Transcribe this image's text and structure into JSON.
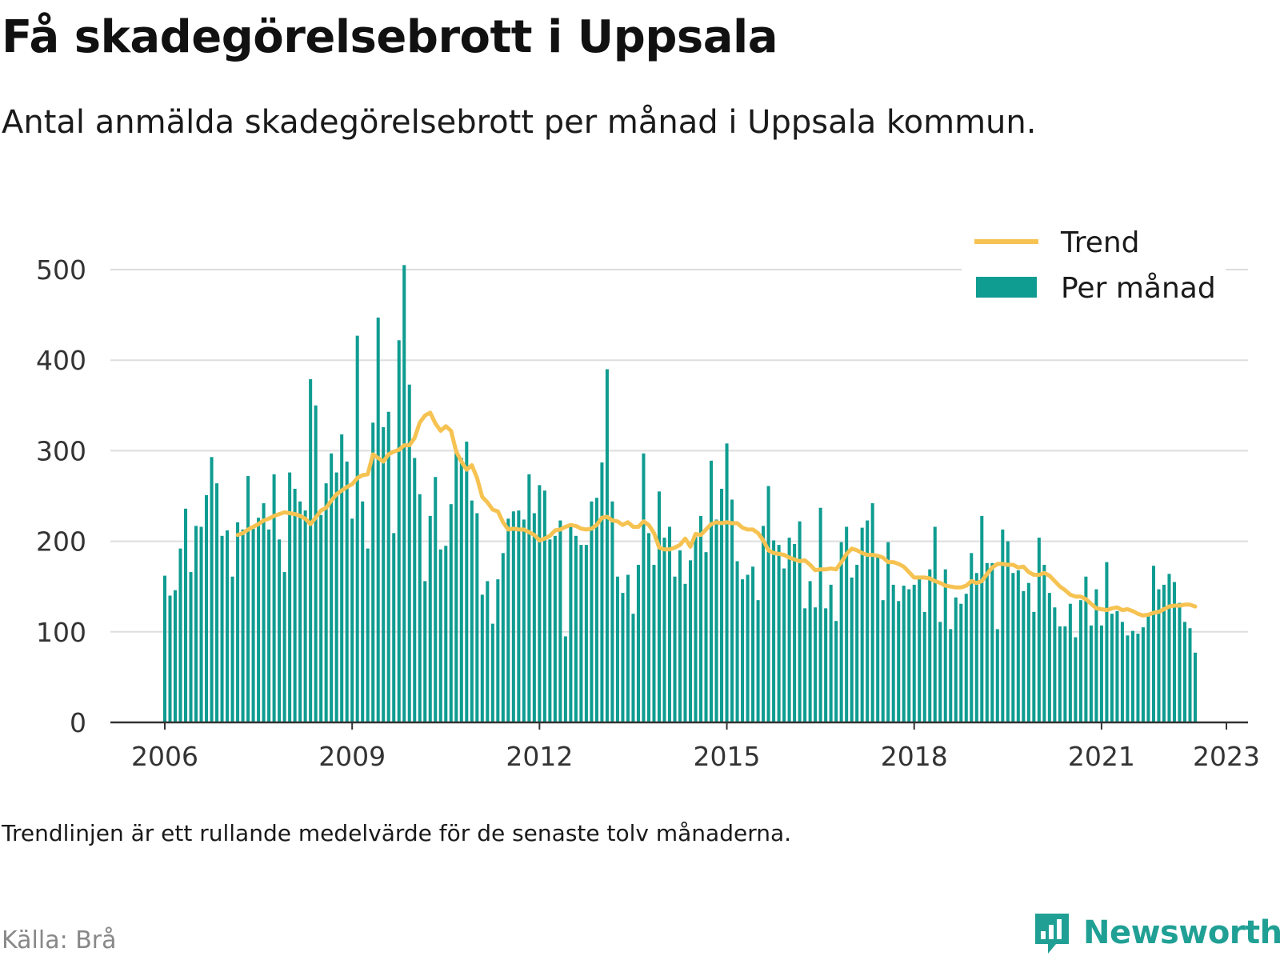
{
  "title": "Få skadegörelsebrott i Uppsala",
  "subtitle": "Antal anmälda skadegörelsebrott per månad i Uppsala kommun.",
  "note": "Trendlinjen är ett rullande medelvärde för de senaste tolv månaderna.",
  "source": "Källa: Brå",
  "brand": "Newsworthy",
  "colors": {
    "bars": "#0f9c91",
    "trend": "#f6c251",
    "grid": "#dddddd",
    "axis": "#333333",
    "brand": "#20a095"
  },
  "chart_data": {
    "type": "bar",
    "title": "",
    "xlabel": "",
    "ylabel": "",
    "ylim": [
      0,
      500
    ],
    "yticks": [
      0,
      100,
      200,
      300,
      400,
      500
    ],
    "xticks": [
      "2006",
      "2009",
      "2012",
      "2015",
      "2018",
      "2021",
      "2023"
    ],
    "x_start": "2006-01",
    "legend": {
      "position": "top-right",
      "entries": [
        "Trend",
        "Per månad"
      ]
    },
    "series": [
      {
        "name": "Per månad",
        "type": "bar",
        "values": [
          162,
          140,
          146,
          192,
          236,
          166,
          217,
          216,
          251,
          293,
          264,
          206,
          212,
          161,
          221,
          213,
          272,
          214,
          226,
          242,
          213,
          274,
          202,
          166,
          276,
          258,
          244,
          234,
          379,
          350,
          229,
          264,
          297,
          276,
          318,
          288,
          225,
          427,
          244,
          192,
          331,
          447,
          326,
          343,
          209,
          422,
          505,
          373,
          292,
          252,
          156,
          228,
          271,
          191,
          195,
          241,
          301,
          292,
          310,
          245,
          231,
          141,
          156,
          109,
          158,
          187,
          225,
          233,
          234,
          224,
          274,
          231,
          262,
          256,
          202,
          206,
          223,
          95,
          218,
          206,
          196,
          196,
          244,
          248,
          287,
          390,
          244,
          161,
          143,
          163,
          120,
          174,
          297,
          209,
          174,
          255,
          204,
          216,
          161,
          190,
          153,
          179,
          205,
          228,
          188,
          289,
          224,
          258,
          308,
          246,
          178,
          158,
          163,
          172,
          135,
          217,
          261,
          201,
          196,
          170,
          204,
          197,
          222,
          126,
          156,
          127,
          237,
          126,
          152,
          112,
          199,
          216,
          160,
          174,
          215,
          223,
          242,
          184,
          135,
          199,
          152,
          134,
          151,
          147,
          152,
          161,
          122,
          169,
          216,
          111,
          169,
          103,
          138,
          131,
          142,
          187,
          165,
          228,
          176,
          176,
          103,
          213,
          200,
          165,
          168,
          145,
          154,
          122,
          204,
          174,
          143,
          127,
          106,
          106,
          131,
          94,
          135,
          161,
          107,
          147,
          107,
          177,
          120,
          123,
          111,
          96,
          101,
          98,
          105,
          117,
          173,
          147,
          152,
          164,
          155,
          132,
          111,
          104,
          77
        ]
      },
      {
        "name": "Trend",
        "type": "line",
        "values": [
          207,
          209,
          213,
          216,
          219,
          223,
          225,
          228,
          230,
          232,
          231,
          230,
          228,
          225,
          219,
          226,
          234,
          237,
          245,
          252,
          256,
          260,
          263,
          270,
          273,
          274,
          296,
          292,
          288,
          296,
          299,
          301,
          306,
          306,
          314,
          331,
          339,
          342,
          330,
          322,
          327,
          322,
          299,
          288,
          279,
          284,
          270,
          249,
          243,
          235,
          233,
          221,
          213,
          214,
          213,
          213,
          210,
          207,
          201,
          203,
          206,
          212,
          213,
          216,
          218,
          217,
          214,
          213,
          214,
          218,
          226,
          227,
          223,
          222,
          218,
          221,
          216,
          216,
          222,
          218,
          209,
          193,
          191,
          191,
          193,
          196,
          203,
          194,
          208,
          207,
          213,
          219,
          221,
          220,
          221,
          220,
          220,
          215,
          213,
          213,
          209,
          201,
          190,
          187,
          186,
          185,
          182,
          180,
          178,
          179,
          174,
          168,
          169,
          169,
          170,
          169,
          177,
          186,
          192,
          190,
          187,
          185,
          185,
          184,
          182,
          177,
          177,
          175,
          172,
          166,
          160,
          160,
          160,
          159,
          156,
          154,
          151,
          150,
          149,
          149,
          151,
          156,
          154,
          156,
          164,
          171,
          175,
          175,
          174,
          174,
          171,
          172,
          166,
          163,
          163,
          165,
          162,
          156,
          150,
          146,
          141,
          139,
          139,
          136,
          131,
          126,
          125,
          124,
          126,
          127,
          124,
          125,
          123,
          120,
          118,
          119,
          121,
          122,
          125,
          128,
          129,
          129,
          130,
          130,
          128
        ]
      }
    ]
  }
}
